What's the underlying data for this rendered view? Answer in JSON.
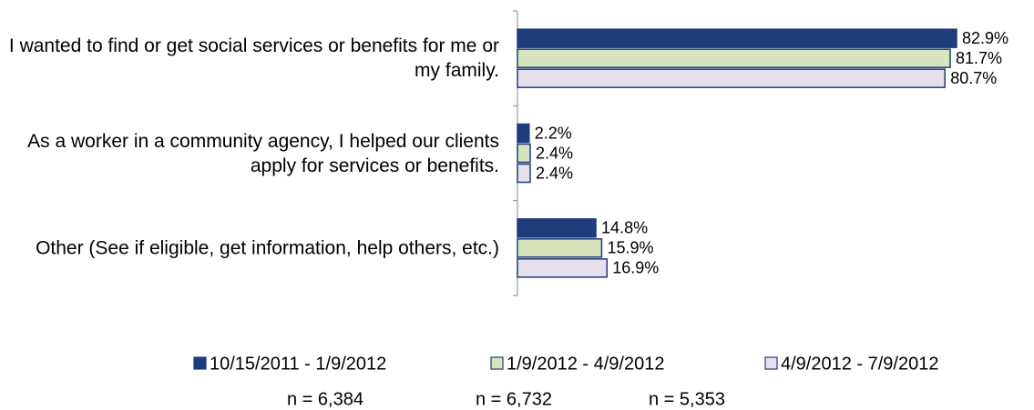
{
  "chart_data": {
    "type": "bar",
    "orientation": "horizontal",
    "categories": [
      "I wanted to find or get social services or benefits for me or my family.",
      "As a worker in a community agency, I helped our clients apply for services or benefits.",
      "Other (See if eligible, get information, help others, etc.)"
    ],
    "series": [
      {
        "name": "10/15/2011 - 1/9/2012",
        "color": "#1f3d7a",
        "values": [
          82.9,
          2.2,
          14.8
        ],
        "value_labels": [
          "82.9%",
          "2.2%",
          "14.8%"
        ]
      },
      {
        "name": "1/9/2012 - 4/9/2012",
        "color": "#d7e4bd",
        "values": [
          81.7,
          2.4,
          15.9
        ],
        "value_labels": [
          "81.7%",
          "2.4%",
          "15.9%"
        ]
      },
      {
        "name": "4/9/2012 - 7/9/2012",
        "color": "#e6e0ec",
        "values": [
          80.7,
          2.4,
          16.9
        ],
        "value_labels": [
          "80.7%",
          "2.4%",
          "16.9%"
        ]
      }
    ],
    "sample_sizes": [
      "n = 6,384",
      "n = 6,732",
      "n = 5,353"
    ],
    "legend": "bottom"
  }
}
